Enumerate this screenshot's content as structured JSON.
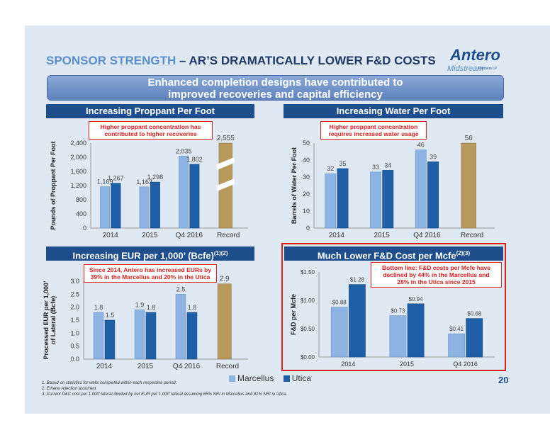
{
  "title": {
    "part1": "SPONSOR STRENGTH",
    "part2": " – AR’S DRAMATICALLY LOWER F&D COSTS"
  },
  "logo": {
    "line1": "Antero",
    "line2": "Midstream",
    "line3": "Partners LP"
  },
  "banner": {
    "line1": "Enhanced completion designs have contributed to",
    "line2": "improved recoveries and capital efficiency"
  },
  "colors": {
    "marcellus": "#8db3e2",
    "utica": "#1f5fa8",
    "record": "#b8995c",
    "header": "#1f4e8c",
    "callout": "#e02020"
  },
  "legend": {
    "marcellus": "Marcellus",
    "utica": "Utica"
  },
  "page_number": "20",
  "footnotes": [
    "1.  Based on statistics for wells completed within each respective period.",
    "2.  Ethane rejection assumed.",
    "3.  Current D&C cost per 1,000’ lateral divided by net EUR per 1,000’ lateral assuming 85% NRI in Marcellus and 81% NRI in Utica."
  ],
  "chart_data": [
    {
      "id": "proppant",
      "type": "bar",
      "header": "Increasing Proppant Per Foot",
      "header_sup": "",
      "callout": [
        "Higher proppant concentration has",
        "contributed to higher recoveries"
      ],
      "ylabel": "Pounds of Proppant Per Foot",
      "categories": [
        "2014",
        "2015",
        "Q4 2016",
        "Record"
      ],
      "ylim": [
        0,
        2400
      ],
      "yticks": [
        "0",
        "400",
        "800",
        "1,200",
        "1,600",
        "2,000",
        "2,400"
      ],
      "series": [
        {
          "name": "Marcellus",
          "values": [
            1169,
            1163,
            2035,
            null
          ],
          "labels": [
            "1,169",
            "1,163",
            "2,035",
            ""
          ]
        },
        {
          "name": "Utica",
          "values": [
            1267,
            1298,
            1802,
            null
          ],
          "labels": [
            "1,267",
            "1,298",
            "1,802",
            ""
          ]
        }
      ],
      "record": {
        "value": 2555,
        "label": "2,555",
        "broken": true
      }
    },
    {
      "id": "water",
      "type": "bar",
      "header": "Increasing Water Per Foot",
      "header_sup": "",
      "callout": [
        "Higher proppant concentration",
        "requires increased water usage"
      ],
      "ylabel": "Barrels of Water Per Foot",
      "categories": [
        "2014",
        "2015",
        "Q4 2016",
        "Record"
      ],
      "ylim": [
        0,
        50
      ],
      "yticks": [
        "0",
        "10",
        "20",
        "30",
        "40",
        "50"
      ],
      "series": [
        {
          "name": "Marcellus",
          "values": [
            32,
            33,
            46,
            null
          ],
          "labels": [
            "32",
            "33",
            "46",
            ""
          ]
        },
        {
          "name": "Utica",
          "values": [
            35,
            34,
            39,
            null
          ],
          "labels": [
            "35",
            "34",
            "39",
            ""
          ]
        }
      ],
      "record": {
        "value": 56,
        "label": "56",
        "broken": false
      }
    },
    {
      "id": "eur",
      "type": "bar",
      "header": "Increasing EUR per 1,000’ (Bcfe)",
      "header_sup": "(1)(2)",
      "callout": [
        "Since 2014, Antero has increased EURs by",
        "39% in the Marcellus and 20% in the Utica"
      ],
      "ylabel": [
        "Processed EUR per 1,000’",
        "of Lateral (Bcfe)"
      ],
      "categories": [
        "2014",
        "2015",
        "Q4 2016",
        "Record"
      ],
      "ylim": [
        0,
        3.0
      ],
      "yticks": [
        "0.0",
        "0.5",
        "1.0",
        "1.5",
        "2.0",
        "2.5",
        "3.0"
      ],
      "series": [
        {
          "name": "Marcellus",
          "values": [
            1.8,
            1.9,
            2.5,
            null
          ],
          "labels": [
            "1.8",
            "1.9",
            "2.5",
            ""
          ]
        },
        {
          "name": "Utica",
          "values": [
            1.5,
            1.8,
            1.8,
            null
          ],
          "labels": [
            "1.5",
            "1.8",
            "1.8",
            ""
          ]
        }
      ],
      "record": {
        "value": 2.9,
        "label": "2.9",
        "broken": false
      }
    },
    {
      "id": "fd",
      "type": "bar",
      "header": "Much Lower F&D Cost per Mcfe",
      "header_sup": "(2)(3)",
      "callout": [
        "Bottom line: F&D costs per Mcfe have",
        "declined by 44% in the Marcellus and",
        "28% in the Utica since 2015"
      ],
      "ylabel": "F&D per Mcfe",
      "categories": [
        "2014",
        "2015",
        "Q4 2016"
      ],
      "ylim": [
        0,
        1.5
      ],
      "yticks": [
        "$0.00",
        "$0.50",
        "$1.00",
        "$1.50"
      ],
      "series": [
        {
          "name": "Marcellus",
          "values": [
            0.88,
            0.73,
            0.41
          ],
          "labels": [
            "$0.88",
            "$0.73",
            "$0.41"
          ]
        },
        {
          "name": "Utica",
          "values": [
            1.28,
            0.94,
            0.68
          ],
          "labels": [
            "$1.28",
            "$0.94",
            "$0.68"
          ]
        }
      ],
      "record": null
    }
  ]
}
